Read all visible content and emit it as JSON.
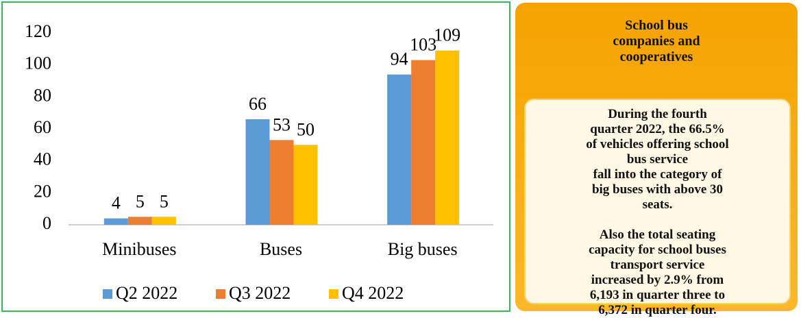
{
  "chart_data": {
    "type": "bar",
    "categories": [
      "Minibuses",
      "Buses",
      "Big buses"
    ],
    "series": [
      {
        "name": "Q2 2022",
        "color": "#5b9bd5",
        "values": [
          4,
          66,
          94
        ]
      },
      {
        "name": "Q3 2022",
        "color": "#ed7d31",
        "values": [
          5,
          53,
          103
        ]
      },
      {
        "name": "Q4 2022",
        "color": "#ffc000",
        "values": [
          5,
          50,
          109
        ]
      }
    ],
    "ylim": [
      0,
      120
    ],
    "yticks": [
      0,
      20,
      40,
      60,
      80,
      100,
      120
    ],
    "grid": false,
    "legend": "bottom"
  },
  "panel": {
    "title": [
      "School bus",
      "companies and",
      "cooperatives"
    ],
    "paragraphs": [
      [
        "During the fourth",
        "quarter 2022, the 66.5%",
        "of vehicles offering school",
        "bus service",
        "fall into the category of",
        "big buses with above 30",
        "seats."
      ],
      [
        "Also the total seating",
        "capacity for school buses",
        "transport service",
        "increased by 2.9% from",
        "6,193 in quarter three to",
        "6,372 in quarter four."
      ]
    ]
  }
}
